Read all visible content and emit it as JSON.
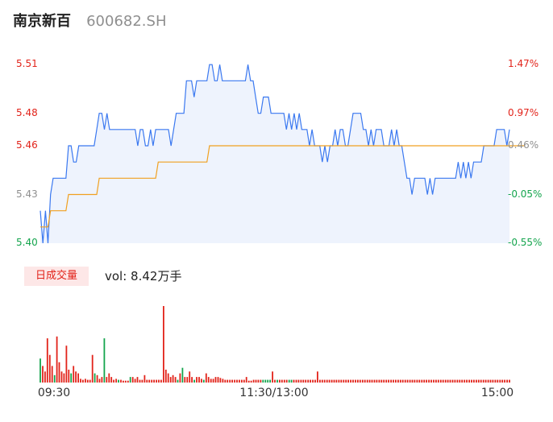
{
  "stock": {
    "name": "南京新百",
    "code": "600682.SH"
  },
  "colors": {
    "up": "#e2231a",
    "down": "#14a44d",
    "flat": "#8f8f8f",
    "price_line": "#3a78f0",
    "avg_line": "#f0a020"
  },
  "volume": {
    "badge": "日成交量",
    "text": "vol: 8.42万手"
  },
  "chart_data": [
    {
      "type": "line",
      "title": "",
      "y_ticks": [
        "5.51",
        "5.48",
        "5.46",
        "5.43",
        "5.40"
      ],
      "pct_ticks": [
        "1.47%",
        "0.97%",
        "0.46%",
        "-0.05%",
        "-0.55%"
      ],
      "x_ticks": [
        "09:30",
        "11:30/13:00",
        "15:00"
      ],
      "ylim": [
        5.4,
        5.52
      ],
      "reference_price": 5.43,
      "series": [
        {
          "values": [
            5.42,
            5.4,
            5.42,
            5.4,
            5.43,
            5.44,
            5.44,
            5.44,
            5.44,
            5.44,
            5.44,
            5.46,
            5.46,
            5.45,
            5.45,
            5.46,
            5.46,
            5.46,
            5.46,
            5.46,
            5.46,
            5.46,
            5.47,
            5.48,
            5.48,
            5.47,
            5.48,
            5.47,
            5.47,
            5.47,
            5.47,
            5.47,
            5.47,
            5.47,
            5.47,
            5.47,
            5.47,
            5.47,
            5.46,
            5.47,
            5.47,
            5.46,
            5.46,
            5.47,
            5.46,
            5.47,
            5.47,
            5.47,
            5.47,
            5.47,
            5.47,
            5.46,
            5.47,
            5.48,
            5.48,
            5.48,
            5.48,
            5.5,
            5.5,
            5.5,
            5.49,
            5.5,
            5.5,
            5.5,
            5.5,
            5.5,
            5.51,
            5.51,
            5.5,
            5.5,
            5.51,
            5.5,
            5.5,
            5.5,
            5.5,
            5.5,
            5.5,
            5.5,
            5.5,
            5.5,
            5.5,
            5.51,
            5.5,
            5.5,
            5.49,
            5.48,
            5.48,
            5.49,
            5.49,
            5.49,
            5.48,
            5.48,
            5.48,
            5.48,
            5.48,
            5.48,
            5.47,
            5.48,
            5.47,
            5.48,
            5.47,
            5.48,
            5.47,
            5.47,
            5.47,
            5.46,
            5.47,
            5.46,
            5.46,
            5.46,
            5.45,
            5.46,
            5.45,
            5.46,
            5.46,
            5.47,
            5.46,
            5.47,
            5.47,
            5.46,
            5.46,
            5.47,
            5.48,
            5.48,
            5.48,
            5.48,
            5.47,
            5.47,
            5.46,
            5.47,
            5.46,
            5.47,
            5.47,
            5.47,
            5.46,
            5.46,
            5.46,
            5.47,
            5.46,
            5.47,
            5.46,
            5.46,
            5.45,
            5.44,
            5.44,
            5.43,
            5.44,
            5.44,
            5.44,
            5.44,
            5.44,
            5.43,
            5.44,
            5.43,
            5.44,
            5.44,
            5.44,
            5.44,
            5.44,
            5.44,
            5.44,
            5.44,
            5.44,
            5.45,
            5.44,
            5.45,
            5.44,
            5.45,
            5.44,
            5.45,
            5.45,
            5.45,
            5.45,
            5.46,
            5.46,
            5.46,
            5.46,
            5.46,
            5.47,
            5.47,
            5.47,
            5.47,
            5.46,
            5.47
          ]
        },
        {
          "values": [
            5.41,
            5.41,
            5.41,
            5.41,
            5.42,
            5.42,
            5.42,
            5.42,
            5.42,
            5.42,
            5.42,
            5.43,
            5.43,
            5.43,
            5.43,
            5.43,
            5.43,
            5.43,
            5.43,
            5.43,
            5.43,
            5.43,
            5.43,
            5.44,
            5.44,
            5.44,
            5.44,
            5.44,
            5.44,
            5.44,
            5.44,
            5.44,
            5.44,
            5.44,
            5.44,
            5.44,
            5.44,
            5.44,
            5.44,
            5.44,
            5.44,
            5.44,
            5.44,
            5.44,
            5.44,
            5.44,
            5.45,
            5.45,
            5.45,
            5.45,
            5.45,
            5.45,
            5.45,
            5.45,
            5.45,
            5.45,
            5.45,
            5.45,
            5.45,
            5.45,
            5.45,
            5.45,
            5.45,
            5.45,
            5.45,
            5.45,
            5.46,
            5.46,
            5.46,
            5.46,
            5.46,
            5.46,
            5.46,
            5.46,
            5.46,
            5.46,
            5.46,
            5.46,
            5.46,
            5.46,
            5.46,
            5.46,
            5.46,
            5.46,
            5.46,
            5.46,
            5.46,
            5.46,
            5.46,
            5.46,
            5.46,
            5.46,
            5.46,
            5.46,
            5.46,
            5.46,
            5.46,
            5.46,
            5.46,
            5.46,
            5.46,
            5.46,
            5.46,
            5.46,
            5.46,
            5.46,
            5.46,
            5.46,
            5.46,
            5.46,
            5.46,
            5.46,
            5.46,
            5.46,
            5.46,
            5.46,
            5.46,
            5.46,
            5.46,
            5.46,
            5.46,
            5.46,
            5.46,
            5.46,
            5.46,
            5.46,
            5.46,
            5.46,
            5.46,
            5.46,
            5.46,
            5.46,
            5.46,
            5.46,
            5.46,
            5.46,
            5.46,
            5.46,
            5.46,
            5.46,
            5.46,
            5.46,
            5.46,
            5.46,
            5.46,
            5.46,
            5.46,
            5.46,
            5.46,
            5.46,
            5.46,
            5.46,
            5.46,
            5.46,
            5.46,
            5.46,
            5.46,
            5.46,
            5.46,
            5.46,
            5.46,
            5.46,
            5.46,
            5.46,
            5.46,
            5.46,
            5.46,
            5.46,
            5.46,
            5.46,
            5.46,
            5.46,
            5.46,
            5.46,
            5.46,
            5.46,
            5.46,
            5.46,
            5.46,
            5.46,
            5.46,
            5.46,
            5.46,
            5.46,
            5.46,
            5.46,
            5.46,
            5.46,
            5.46,
            5.46
          ]
        }
      ]
    },
    {
      "type": "bar",
      "title": "",
      "series": [
        {
          "values": [
            26,
            18,
            12,
            48,
            30,
            18,
            8,
            50,
            22,
            12,
            10,
            40,
            14,
            10,
            18,
            12,
            10,
            4,
            3,
            4,
            3,
            3,
            30,
            10,
            8,
            4,
            6,
            48,
            6,
            10,
            6,
            3,
            4,
            3,
            3,
            2,
            2,
            2,
            6,
            6,
            4,
            6,
            3,
            3,
            8,
            3,
            3,
            3,
            3,
            3,
            3,
            3,
            83,
            14,
            10,
            6,
            8,
            6,
            3,
            10,
            16,
            6,
            6,
            12,
            6,
            3,
            6,
            6,
            4,
            3,
            10,
            6,
            4,
            4,
            6,
            6,
            5,
            4,
            3,
            3,
            3,
            3,
            3,
            3,
            3,
            3,
            3,
            6,
            2,
            2,
            3,
            3,
            3,
            3,
            3,
            3,
            3,
            3,
            12,
            3,
            3,
            3,
            3,
            3,
            3,
            3,
            3,
            3,
            3,
            3,
            3,
            3,
            3,
            3,
            3,
            3,
            3,
            12,
            3,
            3,
            3,
            3,
            3,
            3,
            3,
            3,
            3,
            3,
            3,
            3,
            3,
            3,
            3,
            3,
            3,
            3,
            3,
            3,
            3,
            3,
            3,
            3,
            3,
            3,
            3,
            3,
            3,
            3,
            3,
            3,
            3,
            3,
            3,
            3,
            3,
            3,
            3,
            3,
            3,
            3,
            3,
            3,
            3,
            3,
            3,
            3,
            3,
            3,
            3,
            3,
            3,
            3,
            3,
            3,
            3,
            3,
            3,
            3,
            3,
            3,
            3,
            3,
            3,
            3,
            3,
            3,
            3,
            3,
            3,
            3,
            3,
            3,
            3,
            3,
            3,
            3,
            3,
            3,
            3
          ],
          "ups": [
            false,
            true,
            true,
            true,
            true,
            true,
            false,
            true,
            true,
            true,
            true,
            true,
            true,
            false,
            true,
            true,
            true,
            true,
            true,
            true,
            true,
            true,
            true,
            false,
            true,
            true,
            true,
            false,
            true,
            true,
            true,
            true,
            true,
            false,
            true,
            true,
            true,
            true,
            false,
            true,
            true,
            true,
            true,
            true,
            true,
            true,
            true,
            true,
            true,
            true,
            true,
            true,
            true,
            true,
            true,
            true,
            true,
            true,
            false,
            true,
            false,
            true,
            true,
            true,
            true,
            false,
            true,
            true,
            true,
            false,
            true,
            true,
            true,
            true,
            true,
            true,
            true,
            true,
            true,
            true,
            true,
            true,
            true,
            true,
            true,
            true,
            true,
            true,
            true,
            true,
            true,
            true,
            true,
            true,
            false,
            false,
            false,
            false,
            true,
            true,
            false,
            true,
            true,
            true,
            true,
            false,
            false,
            true,
            true,
            true,
            true,
            true,
            true,
            true,
            true,
            true,
            true,
            true,
            true,
            true,
            true,
            true,
            true,
            true,
            true,
            true,
            true,
            true,
            true,
            true,
            true,
            true,
            true,
            true,
            true,
            true,
            true,
            true,
            true,
            true,
            true,
            true,
            true,
            true,
            true,
            true,
            true,
            true,
            true,
            true,
            true,
            true,
            true,
            true,
            true,
            true,
            true,
            true,
            true,
            true,
            true,
            true,
            true,
            true,
            true,
            true,
            true,
            true,
            true,
            true,
            true,
            true,
            true,
            true,
            true,
            true,
            true,
            true,
            true,
            true,
            true,
            true,
            true,
            true,
            true,
            true,
            true,
            true,
            true,
            true,
            true,
            true,
            true,
            true,
            true,
            true,
            true,
            true,
            true
          ]
        }
      ]
    }
  ]
}
